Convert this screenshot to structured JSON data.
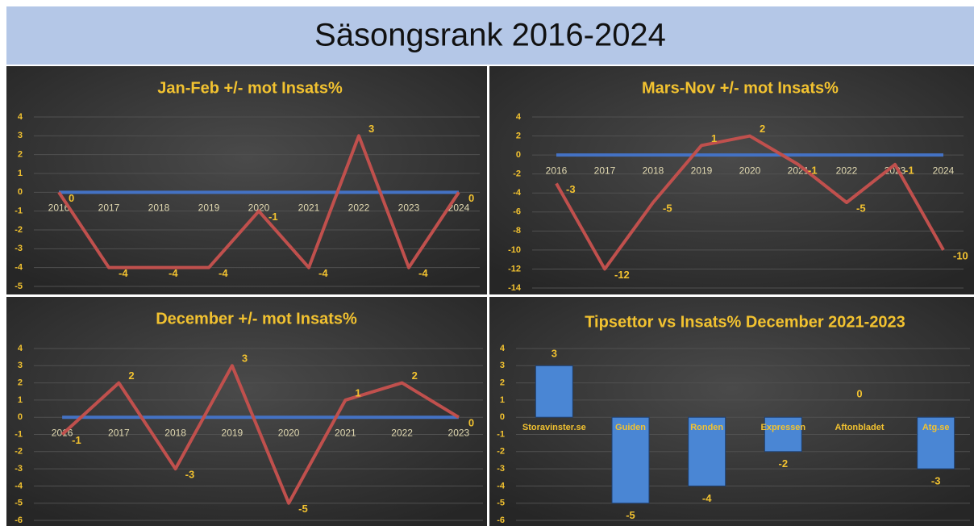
{
  "title": "Säsongsrank 2016-2024",
  "chart_data": [
    {
      "type": "line",
      "title": "Jan-Feb +/- mot Insats%",
      "categories": [
        "2016",
        "2017",
        "2018",
        "2019",
        "2020",
        "2021",
        "2022",
        "2023",
        "2024"
      ],
      "series": [
        {
          "color": "#4472c4",
          "values": [
            0,
            0,
            0,
            0,
            0,
            0,
            0,
            0,
            0
          ]
        },
        {
          "color": "#c0504d",
          "data_labels": true,
          "values": [
            0,
            -4,
            -4,
            -4,
            -1,
            -4,
            3,
            -4,
            0
          ]
        }
      ],
      "ylim": [
        -5,
        4
      ],
      "yticks": [
        -5,
        -4,
        -3,
        -2,
        -1,
        0,
        1,
        2,
        3,
        4
      ],
      "grid": true
    },
    {
      "type": "line",
      "title": "Mars-Nov +/- mot Insats%",
      "categories": [
        "2016",
        "2017",
        "2018",
        "2019",
        "2020",
        "2021",
        "2022",
        "2023",
        "2024"
      ],
      "series": [
        {
          "color": "#4472c4",
          "values": [
            0,
            0,
            0,
            0,
            0,
            0,
            0,
            0,
            0
          ]
        },
        {
          "color": "#c0504d",
          "data_labels": true,
          "values": [
            -3,
            -12,
            -5,
            1,
            2,
            -1,
            -5,
            -1,
            -10
          ]
        }
      ],
      "ylim": [
        -14,
        4
      ],
      "yticks": [
        -14,
        -12,
        -10,
        -8,
        -6,
        -4,
        -2,
        0,
        2,
        4
      ],
      "grid": true
    },
    {
      "type": "line",
      "title": "December +/- mot Insats%",
      "categories": [
        "2016",
        "2017",
        "2018",
        "2019",
        "2020",
        "2021",
        "2022",
        "2023"
      ],
      "series": [
        {
          "color": "#4472c4",
          "values": [
            0,
            0,
            0,
            0,
            0,
            0,
            0,
            0
          ]
        },
        {
          "color": "#c0504d",
          "data_labels": true,
          "values": [
            -1,
            2,
            -3,
            3,
            -5,
            1,
            2,
            0
          ]
        }
      ],
      "ylim": [
        -6,
        4
      ],
      "yticks": [
        -6,
        -5,
        -4,
        -3,
        -2,
        -1,
        0,
        1,
        2,
        3,
        4
      ],
      "grid": true
    },
    {
      "type": "bar",
      "title": "Tipsettor vs Insats% December 2021-2023",
      "categories": [
        "Storavinster.se",
        "Guiden",
        "Ronden",
        "Expressen",
        "Aftonbladet",
        "Atg.se"
      ],
      "series": [
        {
          "color": "#4a86d4",
          "data_labels": true,
          "values": [
            3,
            -5,
            -4,
            -2,
            0,
            -3
          ]
        }
      ],
      "ylim": [
        -6,
        4
      ],
      "yticks": [
        -6,
        -5,
        -4,
        -3,
        -2,
        -1,
        0,
        1,
        2,
        3,
        4
      ],
      "grid": true
    }
  ]
}
